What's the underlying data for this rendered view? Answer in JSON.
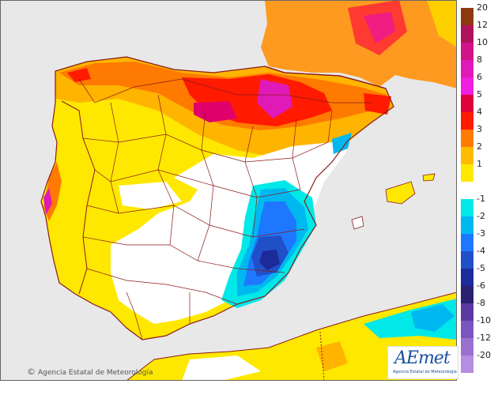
{
  "map": {
    "copyright": "Agencia Estatal de Meteorología",
    "copyright_symbol": "©",
    "logo": "AEmet",
    "logo_subtitle": "Agencia Estatal de Meteorología",
    "colors": {
      "sea": "#e8e8e8",
      "land_neutral": "#ffffff",
      "borders": "#8b1a1a"
    }
  },
  "legend": {
    "items": [
      {
        "label": "20",
        "color": "#8b3a0f"
      },
      {
        "label": "12",
        "color": "#b0125c"
      },
      {
        "label": "10",
        "color": "#d0138a"
      },
      {
        "label": "8",
        "color": "#e01ab8"
      },
      {
        "label": "6",
        "color": "#f01ee0"
      },
      {
        "label": "5",
        "color": "#e0003c"
      },
      {
        "label": "4",
        "color": "#ff1a00"
      },
      {
        "label": "3",
        "color": "#ff7a00"
      },
      {
        "label": "2",
        "color": "#ffbc00"
      },
      {
        "label": "1",
        "color": "#ffe800"
      },
      {
        "label": "",
        "color": "#ffffff"
      },
      {
        "label": "-1",
        "color": "#00e8e8"
      },
      {
        "label": "-2",
        "color": "#00b8f0"
      },
      {
        "label": "-3",
        "color": "#1e78ff"
      },
      {
        "label": "-4",
        "color": "#2050c8"
      },
      {
        "label": "-5",
        "color": "#1c2a9a"
      },
      {
        "label": "-6",
        "color": "#2a2270"
      },
      {
        "label": "-8",
        "color": "#5a3aa0"
      },
      {
        "label": "-10",
        "color": "#7a55c0"
      },
      {
        "label": "-12",
        "color": "#9a70d0"
      },
      {
        "label": "-20",
        "color": "#b48ee0"
      }
    ]
  }
}
